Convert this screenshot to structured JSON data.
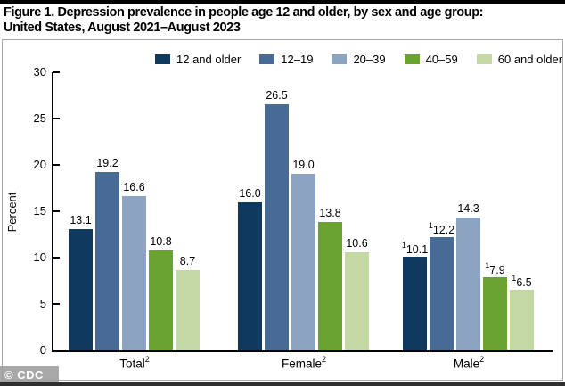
{
  "header": {
    "title_line1": "Figure 1. Depression prevalence in people age 12 and older, by sex and age group:",
    "title_line2": "United States, August 2021–August 2023"
  },
  "watermark": "© CDC",
  "chart_data": {
    "type": "bar",
    "title": "Depression prevalence in people age 12 and older, by sex and age group: United States, August 2021–August 2023",
    "ylabel": "Percent",
    "ylim": [
      0,
      30
    ],
    "yticks": [
      0,
      5,
      10,
      15,
      20,
      25,
      30
    ],
    "grid": false,
    "legend_position": "top",
    "categories": [
      {
        "label": "Total",
        "footnote": "2"
      },
      {
        "label": "Female",
        "footnote": "2"
      },
      {
        "label": "Male",
        "footnote": "2"
      }
    ],
    "series": [
      {
        "name": "12 and older",
        "color": "#10395f",
        "values": [
          13.1,
          16.0,
          10.1
        ],
        "value_footnote_prefixes": [
          "",
          "",
          "1"
        ]
      },
      {
        "name": "12–19",
        "color": "#476b94",
        "values": [
          19.2,
          26.5,
          12.2
        ],
        "value_footnote_prefixes": [
          "",
          "",
          "1"
        ]
      },
      {
        "name": "20–39",
        "color": "#8ca4c2",
        "values": [
          16.6,
          19.0,
          14.3
        ],
        "value_footnote_prefixes": [
          "",
          "",
          ""
        ]
      },
      {
        "name": "40–59",
        "color": "#6aa32f",
        "values": [
          10.8,
          13.8,
          7.9
        ],
        "value_footnote_prefixes": [
          "",
          "",
          "1"
        ]
      },
      {
        "name": "60 and older",
        "color": "#c3d8a3",
        "values": [
          8.7,
          10.6,
          6.5
        ],
        "value_footnote_prefixes": [
          "",
          "",
          "1"
        ]
      }
    ]
  }
}
